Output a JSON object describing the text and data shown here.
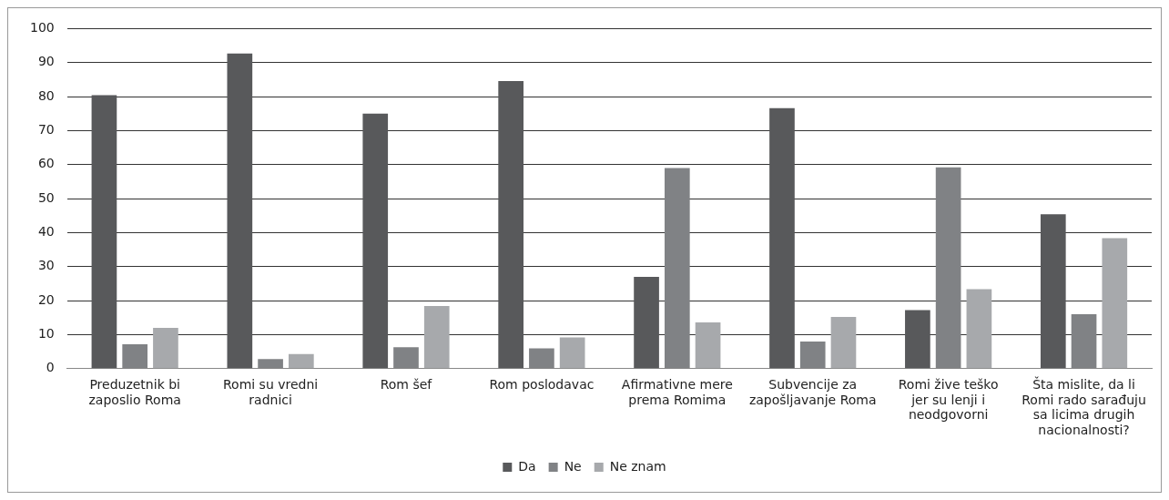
{
  "chart_data": {
    "type": "bar",
    "categories": [
      "Preduzetnik bi zaposlio Roma",
      "Romi su vredni radnici",
      "Rom šef",
      "Rom poslodavac",
      "Afirmativne mere prema Romima",
      "Subvencije za zapošljavanje Roma",
      "Romi žive teško jer su lenji i neodgovorni",
      "Šta mislite, da li Romi rado sarađuju sa licima drugih nacionalnosti?"
    ],
    "series": [
      {
        "name": "Da",
        "color": "#58595b",
        "values": [
          80.4,
          92.7,
          75,
          84.6,
          27,
          76.6,
          17.2,
          45.4
        ]
      },
      {
        "name": "Ne",
        "color": "#808285",
        "values": [
          7.2,
          2.8,
          6.3,
          6,
          59,
          8,
          59.2,
          16
        ]
      },
      {
        "name": "Ne znam",
        "color": "#a7a9ac",
        "values": [
          12,
          4.3,
          18.4,
          9.2,
          13.6,
          15.2,
          23.4,
          38.4
        ]
      }
    ],
    "ylim": [
      0,
      100
    ],
    "yticks": [
      0,
      10,
      20,
      30,
      40,
      50,
      60,
      70,
      80,
      90,
      100
    ],
    "grid": "y",
    "legend": "bottom"
  }
}
